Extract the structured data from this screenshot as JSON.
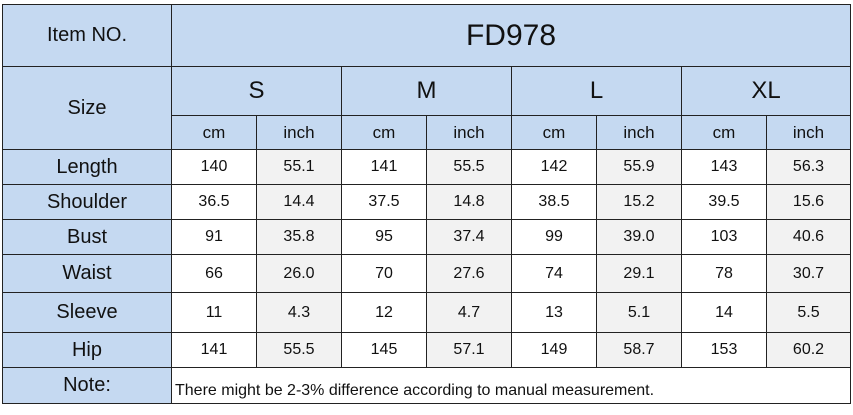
{
  "header": {
    "item_label": "Item NO.",
    "model": "FD978",
    "size_label": "Size"
  },
  "sizes": [
    {
      "name": "S",
      "cm": "cm",
      "inch": "inch"
    },
    {
      "name": "M",
      "cm": "cm",
      "inch": "inch"
    },
    {
      "name": "L",
      "cm": "cm",
      "inch": "inch"
    },
    {
      "name": "XL",
      "cm": "cm",
      "inch": "inch"
    }
  ],
  "rows": [
    {
      "label": "Length",
      "values": [
        "140",
        "55.1",
        "141",
        "55.5",
        "142",
        "55.9",
        "143",
        "56.3"
      ]
    },
    {
      "label": "Shoulder",
      "values": [
        "36.5",
        "14.4",
        "37.5",
        "14.8",
        "38.5",
        "15.2",
        "39.5",
        "15.6"
      ]
    },
    {
      "label": "Bust",
      "values": [
        "91",
        "35.8",
        "95",
        "37.4",
        "99",
        "39.0",
        "103",
        "40.6"
      ]
    },
    {
      "label": "Waist",
      "values": [
        "66",
        "26.0",
        "70",
        "27.6",
        "74",
        "29.1",
        "78",
        "30.7"
      ]
    },
    {
      "label": "Sleeve",
      "values": [
        "11",
        "4.3",
        "12",
        "4.7",
        "13",
        "5.1",
        "14",
        "5.5"
      ]
    },
    {
      "label": "Hip",
      "values": [
        "141",
        "55.5",
        "145",
        "57.1",
        "149",
        "58.7",
        "153",
        "60.2"
      ]
    }
  ],
  "note": {
    "label": "Note:",
    "text": "There might be 2-3% difference according to manual measurement."
  },
  "colors": {
    "header_blue": "#c5d9f1",
    "shaded_cell": "#f2f2f2",
    "border": "#222222"
  }
}
